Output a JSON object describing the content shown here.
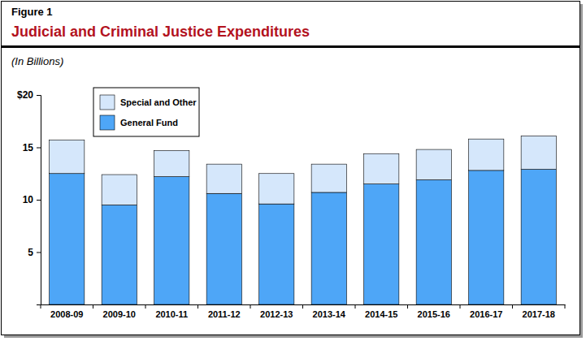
{
  "chart_data": {
    "type": "bar",
    "figure_label": "Figure 1",
    "title": "Judicial and Criminal Justice Expenditures",
    "subtitle": "(In Billions)",
    "categories": [
      "2008-09",
      "2009-10",
      "2010-11",
      "2011-12",
      "2012-13",
      "2013-14",
      "2014-15",
      "2015-16",
      "2016-17",
      "2017-18"
    ],
    "series": [
      {
        "name": "General Fund",
        "color": "#4ea6f7",
        "values": [
          12.5,
          9.5,
          12.2,
          10.6,
          9.6,
          10.7,
          11.5,
          11.9,
          12.8,
          12.9
        ]
      },
      {
        "name": "Special and Other",
        "color": "#d5e7fb",
        "values": [
          3.2,
          2.9,
          2.5,
          2.8,
          2.9,
          2.7,
          2.9,
          2.9,
          3.0,
          3.2
        ]
      }
    ],
    "stacked": true,
    "ylim": [
      0,
      20
    ],
    "yticks": [
      5,
      10,
      15,
      {
        "value": 20,
        "label": "$20"
      }
    ],
    "grid": false,
    "legend": "upper left"
  }
}
